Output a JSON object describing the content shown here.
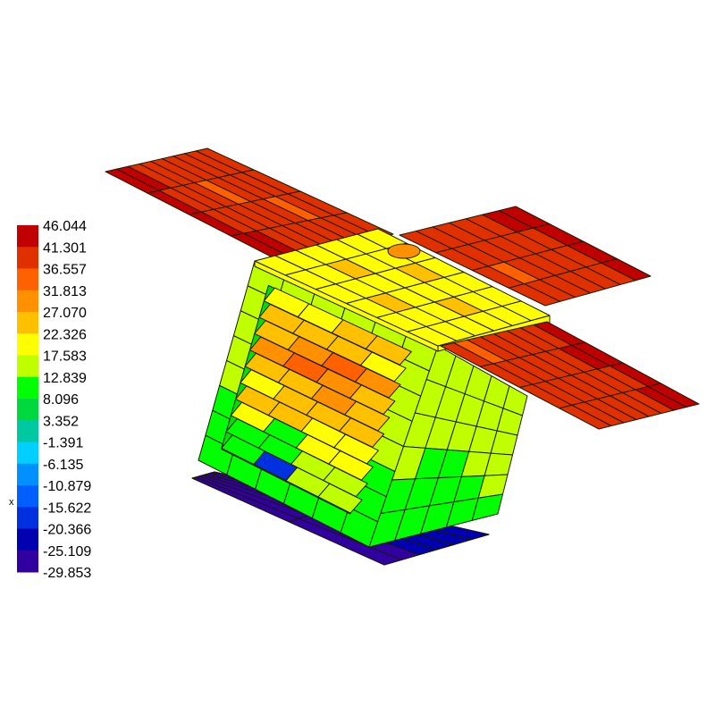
{
  "legend": {
    "labels": [
      "46.044",
      "41.301",
      "36.557",
      "31.813",
      "27.070",
      "22.326",
      "17.583",
      "12.839",
      "8.096",
      "3.352",
      "-1.391",
      "-6.135",
      "-10.879",
      "-15.622",
      "-20.366",
      "-25.109",
      "-29.853"
    ],
    "colors": [
      "#c00000",
      "#e03000",
      "#ff6000",
      "#ff9000",
      "#ffc000",
      "#ffff00",
      "#c0ff00",
      "#00ff00",
      "#00d840",
      "#00c8a0",
      "#00d0ff",
      "#0090ff",
      "#0060ff",
      "#0030e0",
      "#0000b0",
      "#3000a0"
    ]
  },
  "axis_marker": "x",
  "model": {
    "left_wing_levels": [
      [
        0,
        0,
        1,
        1,
        1,
        1,
        1,
        1,
        1
      ],
      [
        0,
        1,
        1,
        1,
        2,
        1,
        1,
        1,
        1
      ],
      [
        0,
        1,
        1,
        1,
        1,
        1,
        2,
        1,
        1
      ],
      [
        0,
        0,
        1,
        1,
        1,
        1,
        1,
        1,
        1
      ]
    ],
    "right_upper_wing_levels": [
      [
        1,
        1,
        1,
        1,
        1,
        0,
        0
      ],
      [
        1,
        1,
        1,
        1,
        1,
        1,
        0
      ],
      [
        1,
        2,
        1,
        1,
        1,
        1,
        0
      ],
      [
        1,
        1,
        1,
        1,
        1,
        1,
        0
      ]
    ],
    "right_lower_wing_levels": [
      [
        1,
        2,
        1,
        1,
        1,
        1,
        1,
        0
      ],
      [
        1,
        1,
        1,
        1,
        1,
        1,
        0,
        0
      ],
      [
        1,
        1,
        1,
        1,
        1,
        1,
        1,
        0
      ],
      [
        1,
        1,
        1,
        1,
        1,
        1,
        0,
        0
      ]
    ],
    "top_plate_levels": [
      [
        5,
        5,
        5,
        5,
        5,
        5
      ],
      [
        5,
        5,
        4,
        5,
        5,
        5
      ],
      [
        5,
        5,
        5,
        5,
        4,
        5
      ],
      [
        5,
        4,
        5,
        5,
        5,
        5
      ],
      [
        5,
        5,
        5,
        4,
        5,
        5
      ],
      [
        5,
        5,
        5,
        5,
        5,
        5
      ]
    ],
    "right_face_levels": [
      [
        6,
        6,
        6,
        6,
        6
      ],
      [
        6,
        6,
        6,
        6,
        6
      ],
      [
        6,
        6,
        6,
        6,
        6
      ],
      [
        6,
        7,
        7,
        6,
        6
      ],
      [
        7,
        7,
        7,
        7,
        6
      ],
      [
        7,
        7,
        7,
        7,
        7
      ]
    ],
    "front_frame_levels": [
      6,
      6,
      6,
      6,
      6,
      7,
      7,
      7
    ],
    "interior_levels": [
      [
        5,
        5,
        4,
        4
      ],
      [
        4,
        4,
        4,
        5
      ],
      [
        4,
        3,
        2,
        3
      ],
      [
        3,
        2,
        3,
        4
      ],
      [
        4,
        4,
        3,
        4
      ],
      [
        5,
        4,
        4,
        4
      ],
      [
        4,
        4,
        5,
        5
      ],
      [
        5,
        7,
        5,
        5
      ],
      [
        7,
        7,
        6,
        6
      ],
      [
        7,
        13,
        6,
        6
      ]
    ],
    "bottom_plate_level": 15
  }
}
